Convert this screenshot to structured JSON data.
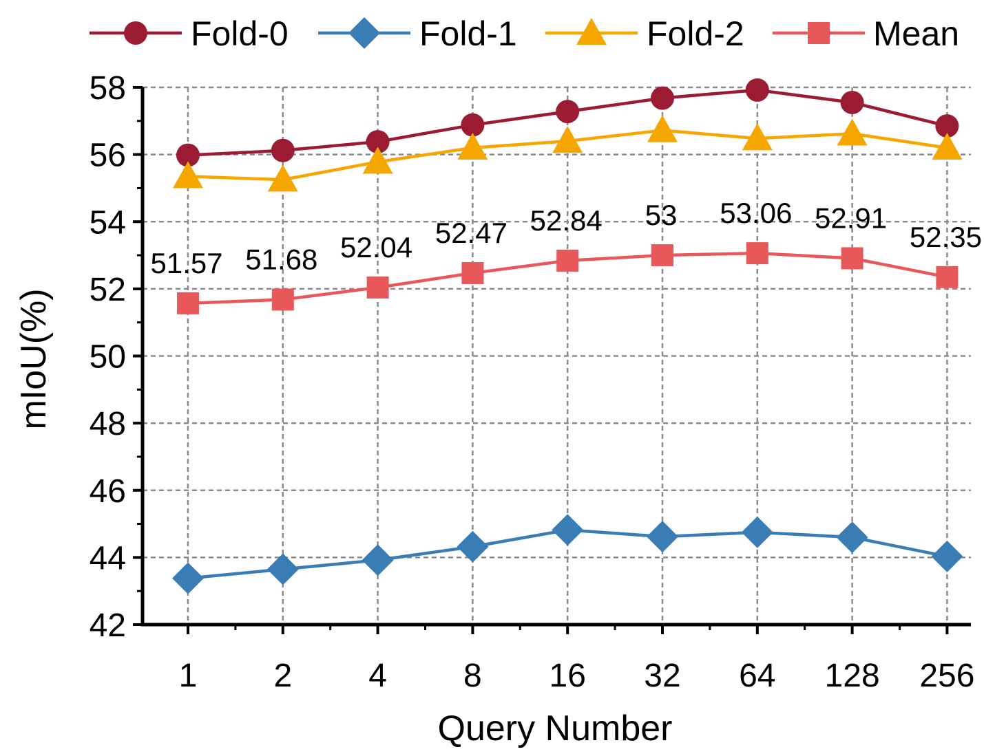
{
  "chart_data": {
    "type": "line",
    "title": "",
    "xlabel": "Query Number",
    "ylabel": "mIoU(%)",
    "categories": [
      "1",
      "2",
      "4",
      "8",
      "16",
      "32",
      "64",
      "128",
      "256"
    ],
    "ylim": [
      42,
      58
    ],
    "yticks": [
      "42",
      "44",
      "46",
      "48",
      "50",
      "52",
      "54",
      "56",
      "58"
    ],
    "grid": true,
    "legend_position": "top",
    "series": [
      {
        "name": "Fold-0",
        "marker": "circle",
        "color": "#9a1b32",
        "values": [
          55.98,
          56.12,
          56.38,
          56.88,
          57.28,
          57.68,
          57.92,
          57.55,
          56.85
        ]
      },
      {
        "name": "Fold-1",
        "marker": "diamond",
        "color": "#3a7db4",
        "values": [
          43.38,
          43.65,
          43.92,
          44.32,
          44.82,
          44.62,
          44.75,
          44.6,
          44.03
        ]
      },
      {
        "name": "Fold-2",
        "marker": "triangle",
        "color": "#f5a700",
        "values": [
          55.35,
          55.25,
          55.78,
          56.2,
          56.4,
          56.72,
          56.48,
          56.62,
          56.2
        ]
      },
      {
        "name": "Mean",
        "marker": "square",
        "color": "#e8575a",
        "values": [
          51.57,
          51.68,
          52.04,
          52.47,
          52.84,
          53.0,
          53.06,
          52.91,
          52.35
        ],
        "data_labels": [
          "51.57",
          "51.68",
          "52.04",
          "52.47",
          "52.84",
          "53",
          "53.06",
          "52.91",
          "52.35"
        ]
      }
    ]
  }
}
